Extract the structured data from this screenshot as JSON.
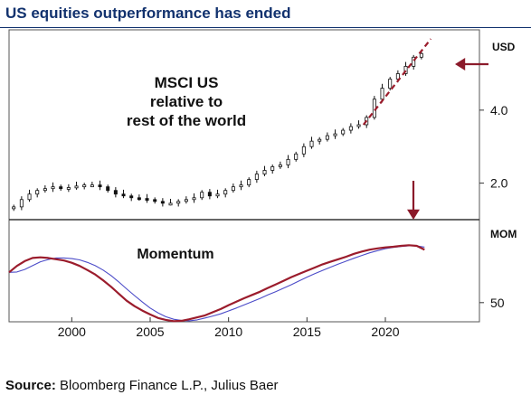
{
  "title": "US equities outperformance has ended",
  "source": {
    "label": "Source:",
    "text": " Bloomberg Finance L.P., Julius Baer"
  },
  "colors": {
    "title": "#12326e",
    "momentum": "#9b1c2c",
    "signal": "#4b4bc8",
    "arrow": "#8b1a2a"
  },
  "chart_data": [
    {
      "type": "candlestick",
      "annotations": [
        "MSCI US",
        "relative to",
        "rest of the world"
      ],
      "ylabel": "USD",
      "yticks": [
        2.0,
        4.0
      ],
      "ytick_labels": [
        "2.0",
        "4.0"
      ],
      "ylim": [
        1.0,
        6.2
      ],
      "x": [
        1996.3,
        1996.8,
        1997.3,
        1997.8,
        1998.3,
        1998.8,
        1999.3,
        1999.8,
        2000.3,
        2000.8,
        2001.3,
        2001.8,
        2002.3,
        2002.8,
        2003.3,
        2003.8,
        2004.3,
        2004.8,
        2005.3,
        2005.8,
        2006.3,
        2006.8,
        2007.3,
        2007.8,
        2008.3,
        2008.8,
        2009.3,
        2009.8,
        2010.3,
        2010.8,
        2011.3,
        2011.8,
        2012.3,
        2012.8,
        2013.3,
        2013.8,
        2014.3,
        2014.8,
        2015.3,
        2015.8,
        2016.3,
        2016.8,
        2017.3,
        2017.8,
        2018.3,
        2018.8,
        2019.3,
        2019.8,
        2020.3,
        2020.8,
        2021.3,
        2021.8,
        2022.3
      ],
      "values": [
        1.35,
        1.55,
        1.7,
        1.8,
        1.85,
        1.9,
        1.85,
        1.88,
        1.92,
        1.95,
        1.95,
        1.9,
        1.8,
        1.7,
        1.65,
        1.6,
        1.58,
        1.55,
        1.5,
        1.45,
        1.45,
        1.5,
        1.55,
        1.6,
        1.75,
        1.65,
        1.7,
        1.8,
        1.9,
        1.95,
        2.1,
        2.25,
        2.35,
        2.45,
        2.5,
        2.65,
        2.8,
        3.0,
        3.15,
        3.2,
        3.3,
        3.35,
        3.45,
        3.55,
        3.6,
        3.8,
        4.3,
        4.6,
        4.85,
        5.0,
        5.2,
        5.45,
        5.55
      ],
      "trend_line": {
        "x": [
          2018.6,
          2022.9
        ],
        "y": [
          3.6,
          5.95
        ]
      },
      "arrow_marker": "current"
    },
    {
      "type": "line",
      "ylabel": "MOM",
      "yticks": [
        50
      ],
      "ytick_labels": [
        "50"
      ],
      "ylim": [
        44,
        76
      ],
      "annotations": [
        "Momentum"
      ],
      "xticks": [
        2000,
        2005,
        2010,
        2015,
        2020
      ],
      "xtick_labels": [
        "2000",
        "2005",
        "2010",
        "2015",
        "2020"
      ],
      "xlim": [
        1996,
        2026
      ],
      "series": [
        {
          "x": [
            1996.0,
            1996.5,
            1997.0,
            1997.5,
            1998.0,
            1998.5,
            1999.0,
            1999.5,
            2000.0,
            2000.5,
            2001.0,
            2001.5,
            2002.0,
            2002.5,
            2003.0,
            2003.5,
            2004.0,
            2004.5,
            2005.0,
            2005.5,
            2006.0,
            2006.5,
            2007.0,
            2007.5,
            2008.0,
            2008.5,
            2009.0,
            2009.5,
            2010.0,
            2010.5,
            2011.0,
            2011.5,
            2012.0,
            2012.5,
            2013.0,
            2013.5,
            2014.0,
            2014.5,
            2015.0,
            2015.5,
            2016.0,
            2016.5,
            2017.0,
            2017.5,
            2018.0,
            2018.5,
            2019.0,
            2019.5,
            2020.0,
            2020.5,
            2021.0,
            2021.5,
            2022.0,
            2022.5
          ],
          "values": [
            59.5,
            61.5,
            63.0,
            64.0,
            64.2,
            64.0,
            63.6,
            63.2,
            62.5,
            61.5,
            60.2,
            58.8,
            57.0,
            55.0,
            52.8,
            50.6,
            48.9,
            47.5,
            46.3,
            45.2,
            44.6,
            44.2,
            44.3,
            44.8,
            45.4,
            46.0,
            47.0,
            48.0,
            49.2,
            50.3,
            51.4,
            52.4,
            53.4,
            54.6,
            55.7,
            56.8,
            58.0,
            59.0,
            60.0,
            61.0,
            62.0,
            62.8,
            63.6,
            64.4,
            65.3,
            66.0,
            66.6,
            67.0,
            67.3,
            67.5,
            67.8,
            68.0,
            67.8,
            66.6
          ]
        },
        {
          "x": [
            1996.0,
            1996.5,
            1997.0,
            1997.5,
            1998.0,
            1998.5,
            1999.0,
            1999.5,
            2000.0,
            2000.5,
            2001.0,
            2001.5,
            2002.0,
            2002.5,
            2003.0,
            2003.5,
            2004.0,
            2004.5,
            2005.0,
            2005.5,
            2006.0,
            2006.5,
            2007.0,
            2007.5,
            2008.0,
            2008.5,
            2009.0,
            2009.5,
            2010.0,
            2010.5,
            2011.0,
            2011.5,
            2012.0,
            2012.5,
            2013.0,
            2013.5,
            2014.0,
            2014.5,
            2015.0,
            2015.5,
            2016.0,
            2016.5,
            2017.0,
            2017.5,
            2018.0,
            2018.5,
            2019.0,
            2019.5,
            2020.0,
            2020.5,
            2021.0,
            2021.5,
            2022.0,
            2022.5
          ],
          "values": [
            59.5,
            59.6,
            60.4,
            61.6,
            62.8,
            63.5,
            64.0,
            64.0,
            63.8,
            63.4,
            62.6,
            61.6,
            60.2,
            58.5,
            56.5,
            54.3,
            52.2,
            50.2,
            48.3,
            46.8,
            45.6,
            44.8,
            44.4,
            44.3,
            44.6,
            45.2,
            45.8,
            46.5,
            47.4,
            48.3,
            49.3,
            50.3,
            51.3,
            52.4,
            53.4,
            54.5,
            55.6,
            56.8,
            58.0,
            59.1,
            60.1,
            61.1,
            62.1,
            63.0,
            63.9,
            64.8,
            65.6,
            66.3,
            66.9,
            67.3,
            67.6,
            67.8,
            67.8,
            67.4
          ]
        }
      ]
    }
  ]
}
